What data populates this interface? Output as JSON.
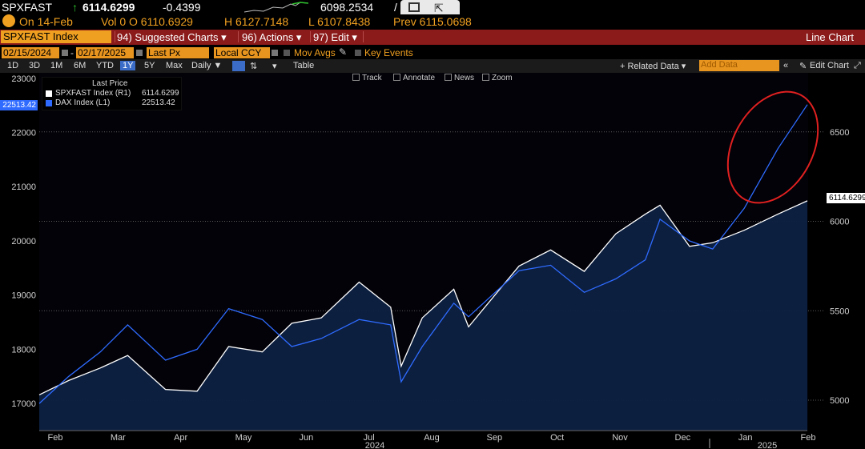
{
  "header": {
    "ticker": "SPXFAST",
    "price": "6114.6299",
    "change": "-0.4399",
    "spark_value": "6098.2534",
    "spark_suffix": "/"
  },
  "subheader": {
    "on_date": "On 14-Feb",
    "vol": "Vol 0 O 6110.6929",
    "high": "H 6127.7148",
    "low": "L 6107.8438",
    "prev": "Prev 6115.0698"
  },
  "toolbar": {
    "security": "SPXFAST Index",
    "suggested": "94) Suggested Charts ▾",
    "actions": "96) Actions ▾",
    "edit": "97) Edit ▾",
    "title": "Line Chart"
  },
  "options": {
    "start_date": "02/15/2024",
    "end_date": "02/17/2025",
    "field": "Last Px",
    "currency": "Local CCY",
    "mov_avgs": "Mov Avgs",
    "key_events": "Key Events"
  },
  "ranges": {
    "items": [
      "1D",
      "3D",
      "1M",
      "6M",
      "YTD",
      "1Y",
      "5Y",
      "Max"
    ],
    "selected": "1Y",
    "period": "Daily ▼",
    "table": "Table",
    "related": "+ Related Data ▾",
    "add_data_placeholder": "Add Data",
    "edit_chart": "Edit Chart"
  },
  "chart_tools": {
    "track": "Track",
    "annotate": "Annotate",
    "news": "News",
    "zoom": "Zoom"
  },
  "legend": {
    "header": "Last Price",
    "items": [
      {
        "name": "SPXFAST Index (R1)",
        "value": "6114.6299",
        "color": "#ffffff"
      },
      {
        "name": "DAX Index (L1)",
        "value": "22513.42",
        "color": "#2f6bff"
      }
    ]
  },
  "last_labels": {
    "left": "22513.42",
    "right": "6114.6299"
  },
  "chart_data": {
    "type": "line",
    "x": [
      "2024-02-15",
      "2024-02-29",
      "2024-03-15",
      "2024-03-28",
      "2024-04-15",
      "2024-04-30",
      "2024-05-15",
      "2024-05-31",
      "2024-06-14",
      "2024-06-28",
      "2024-07-16",
      "2024-07-31",
      "2024-08-05",
      "2024-08-15",
      "2024-08-30",
      "2024-09-06",
      "2024-09-30",
      "2024-10-15",
      "2024-10-31",
      "2024-11-15",
      "2024-11-29",
      "2024-12-06",
      "2024-12-20",
      "2024-12-31",
      "2025-01-15",
      "2025-01-31",
      "2025-02-14"
    ],
    "series": [
      {
        "name": "SPXFAST Index (R1)",
        "axis": "right",
        "color": "#ffffff",
        "values": [
          5030,
          5110,
          5180,
          5250,
          5060,
          5050,
          5300,
          5270,
          5430,
          5460,
          5660,
          5520,
          5190,
          5460,
          5620,
          5410,
          5750,
          5840,
          5720,
          5930,
          6040,
          6090,
          5860,
          5880,
          5950,
          6040,
          6114.63
        ]
      },
      {
        "name": "DAX Index (L1)",
        "axis": "left",
        "color": "#2f6bff",
        "values": [
          17000,
          17500,
          17950,
          18450,
          17800,
          18000,
          18750,
          18550,
          18050,
          18200,
          18550,
          18450,
          17400,
          18050,
          18850,
          18600,
          19450,
          19550,
          19050,
          19300,
          19650,
          20400,
          20000,
          19850,
          20600,
          21700,
          22513.42
        ]
      }
    ],
    "y_left": {
      "ticks": [
        17000,
        18000,
        19000,
        20000,
        21000,
        22000,
        23000
      ],
      "range": [
        16500,
        23100
      ]
    },
    "y_right": {
      "ticks": [
        5000,
        5500,
        6000,
        6500
      ],
      "range": [
        4830,
        6830
      ]
    },
    "x_ticks": [
      "Feb",
      "Mar",
      "Apr",
      "May",
      "Jun",
      "Jul",
      "Aug",
      "Sep",
      "Oct",
      "Nov",
      "Dec",
      "Jan",
      "Feb"
    ],
    "year_labels": [
      "2024",
      "2025"
    ],
    "grid": "dotted horizontal",
    "annotation": "red hand-drawn ellipse around DAX rally"
  }
}
